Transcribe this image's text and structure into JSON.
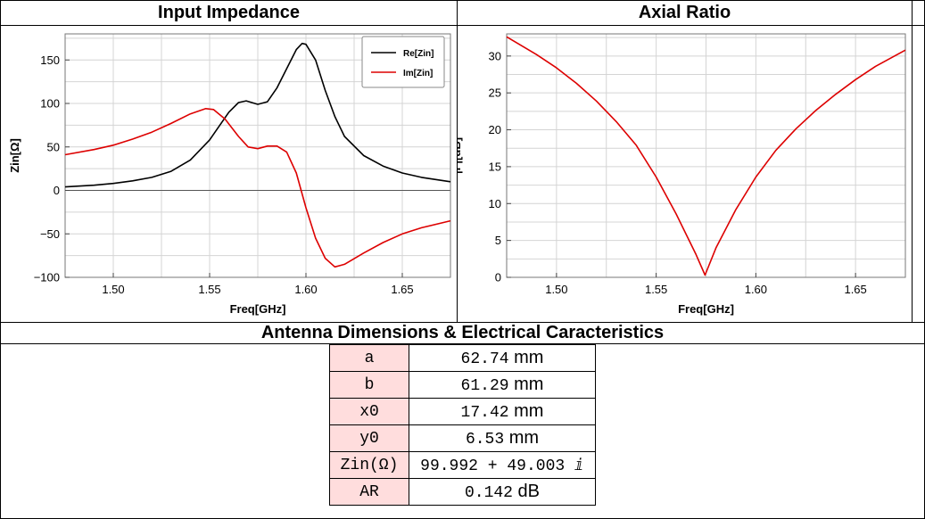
{
  "panels": {
    "impedance_title": "Input Impedance",
    "axial_title": "Axial Ratio",
    "table_title": "Antenna Dimensions & Electrical Caracteristics"
  },
  "chart_data": [
    {
      "type": "line",
      "title": "Input Impedance",
      "xlabel": "Freq[GHz]",
      "ylabel": "Zin[Ω]",
      "xlim": [
        1.475,
        1.675
      ],
      "ylim": [
        -100,
        180
      ],
      "xticks": [
        1.5,
        1.55,
        1.6,
        1.65
      ],
      "xtick_labels": [
        "1.50",
        "1.55",
        "1.60",
        "1.65"
      ],
      "yticks": [
        -100,
        -50,
        0,
        50,
        100,
        150
      ],
      "ytick_labels": [
        "−100",
        "−50",
        "0",
        "50",
        "100",
        "150"
      ],
      "grid": true,
      "legend_position": "top-right",
      "series": [
        {
          "name": "Re[Zin]",
          "color": "#000000",
          "points": [
            [
              1.475,
              4
            ],
            [
              1.49,
              6
            ],
            [
              1.5,
              8
            ],
            [
              1.51,
              11
            ],
            [
              1.52,
              15
            ],
            [
              1.53,
              22
            ],
            [
              1.54,
              35
            ],
            [
              1.55,
              58
            ],
            [
              1.555,
              74
            ],
            [
              1.56,
              90
            ],
            [
              1.565,
              101
            ],
            [
              1.569,
              103
            ],
            [
              1.575,
              99
            ],
            [
              1.58,
              102
            ],
            [
              1.585,
              118
            ],
            [
              1.59,
              140
            ],
            [
              1.595,
              162
            ],
            [
              1.598,
              169
            ],
            [
              1.6,
              168
            ],
            [
              1.605,
              150
            ],
            [
              1.61,
              115
            ],
            [
              1.615,
              85
            ],
            [
              1.62,
              62
            ],
            [
              1.63,
              40
            ],
            [
              1.64,
              28
            ],
            [
              1.65,
              20
            ],
            [
              1.66,
              15
            ],
            [
              1.675,
              10
            ]
          ]
        },
        {
          "name": "Im[Zin]",
          "color": "#dd0000",
          "points": [
            [
              1.475,
              41
            ],
            [
              1.49,
              47
            ],
            [
              1.5,
              52
            ],
            [
              1.51,
              59
            ],
            [
              1.52,
              67
            ],
            [
              1.53,
              77
            ],
            [
              1.54,
              88
            ],
            [
              1.548,
              94
            ],
            [
              1.552,
              93
            ],
            [
              1.558,
              82
            ],
            [
              1.565,
              62
            ],
            [
              1.57,
              50
            ],
            [
              1.575,
              48
            ],
            [
              1.58,
              51
            ],
            [
              1.585,
              51
            ],
            [
              1.59,
              44
            ],
            [
              1.595,
              20
            ],
            [
              1.6,
              -20
            ],
            [
              1.605,
              -55
            ],
            [
              1.61,
              -78
            ],
            [
              1.615,
              -88
            ],
            [
              1.62,
              -85
            ],
            [
              1.63,
              -72
            ],
            [
              1.64,
              -60
            ],
            [
              1.65,
              -50
            ],
            [
              1.66,
              -43
            ],
            [
              1.675,
              -35
            ]
          ]
        }
      ]
    },
    {
      "type": "line",
      "title": "Axial Ratio",
      "xlabel": "Freq[GHz]",
      "ylabel": "|Γ|[dB]",
      "xlim": [
        1.475,
        1.675
      ],
      "ylim": [
        0,
        33
      ],
      "xticks": [
        1.5,
        1.55,
        1.6,
        1.65
      ],
      "xtick_labels": [
        "1.50",
        "1.55",
        "1.60",
        "1.65"
      ],
      "yticks": [
        0,
        5,
        10,
        15,
        20,
        25,
        30
      ],
      "ytick_labels": [
        "0",
        "5",
        "10",
        "15",
        "20",
        "25",
        "30"
      ],
      "grid": true,
      "series": [
        {
          "color": "#dd0000",
          "points": [
            [
              1.475,
              32.6
            ],
            [
              1.49,
              30.2
            ],
            [
              1.5,
              28.4
            ],
            [
              1.51,
              26.3
            ],
            [
              1.52,
              23.9
            ],
            [
              1.53,
              21.1
            ],
            [
              1.54,
              17.9
            ],
            [
              1.55,
              13.6
            ],
            [
              1.56,
              8.6
            ],
            [
              1.57,
              3.1
            ],
            [
              1.5745,
              0.3
            ],
            [
              1.58,
              4.0
            ],
            [
              1.59,
              9.2
            ],
            [
              1.6,
              13.6
            ],
            [
              1.61,
              17.2
            ],
            [
              1.62,
              20.1
            ],
            [
              1.63,
              22.6
            ],
            [
              1.64,
              24.8
            ],
            [
              1.65,
              26.8
            ],
            [
              1.66,
              28.6
            ],
            [
              1.675,
              30.8
            ]
          ]
        }
      ]
    }
  ],
  "dimensions_table": {
    "rows": [
      {
        "key": "a",
        "value": "62.74",
        "unit": "mm"
      },
      {
        "key": "b",
        "value": "61.29",
        "unit": "mm"
      },
      {
        "key": "x0",
        "value": "17.42",
        "unit": "mm"
      },
      {
        "key": "y0",
        "value": "6.53",
        "unit": "mm"
      },
      {
        "key": "Zin(Ω)",
        "value": "99.992 + 49.003 ⅈ",
        "unit": ""
      },
      {
        "key": "AR",
        "value": "0.142",
        "unit": "dB"
      }
    ]
  }
}
